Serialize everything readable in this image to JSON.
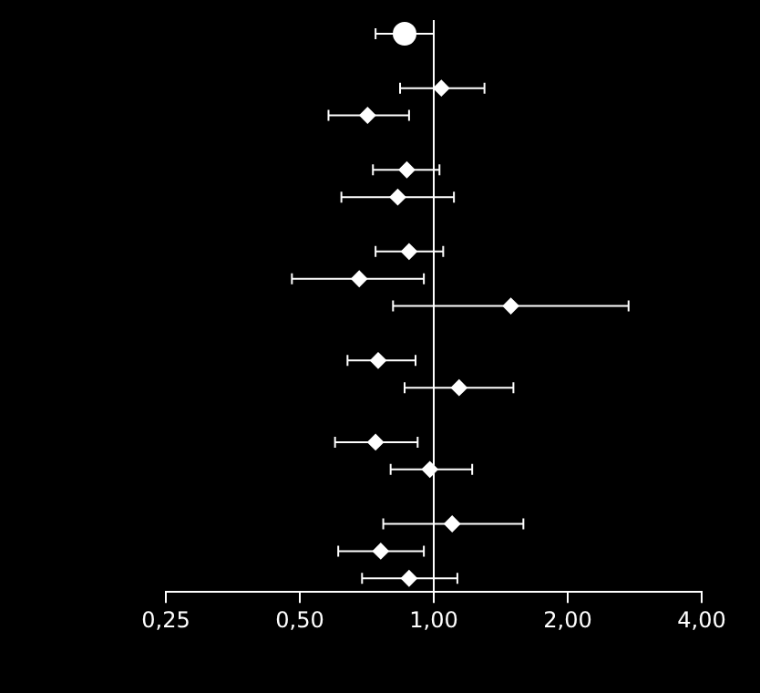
{
  "chart_data": {
    "type": "scatter",
    "orientation": "horizontal",
    "log": "x",
    "xlim": [
      0.25,
      4
    ],
    "xticks": [
      {
        "value": 0.25,
        "label": "0,25"
      },
      {
        "value": 0.5,
        "label": "0,50"
      },
      {
        "value": 1,
        "label": "1,00"
      },
      {
        "value": 2,
        "label": "2,00"
      },
      {
        "value": 4,
        "label": "4,00"
      }
    ],
    "categories": [
      null,
      null,
      null,
      null,
      null,
      null,
      null,
      null,
      null,
      null,
      null,
      null,
      null,
      null,
      null,
      null,
      null,
      null,
      null,
      null,
      null
    ],
    "grid": false,
    "legend": false,
    "ref_lines": [
      {
        "axis": "x",
        "value": 1,
        "color": "#ffffff"
      }
    ],
    "series": [
      {
        "color": "#ffffff",
        "marker": "circle",
        "values": [
          0.86,
          null,
          null,
          null,
          null,
          null,
          null,
          null,
          null,
          null,
          null,
          null,
          null,
          null,
          null,
          null,
          null,
          null,
          null,
          null,
          null
        ],
        "errors": [
          [
            0.74,
            1.0
          ],
          null,
          null,
          null,
          null,
          null,
          null,
          null,
          null,
          null,
          null,
          null,
          null,
          null,
          null,
          null,
          null,
          null,
          null,
          null,
          null
        ]
      },
      {
        "color": "#ffffff",
        "marker": "diamond",
        "values": [
          null,
          null,
          1.04,
          0.71,
          null,
          0.87,
          0.83,
          null,
          0.88,
          0.68,
          1.49,
          null,
          0.75,
          1.14,
          null,
          0.74,
          0.98,
          null,
          1.1,
          0.76,
          0.88
        ],
        "errors": [
          null,
          null,
          [
            0.84,
            1.3
          ],
          [
            0.58,
            0.88
          ],
          null,
          [
            0.73,
            1.03
          ],
          [
            0.62,
            1.11
          ],
          null,
          [
            0.74,
            1.05
          ],
          [
            0.48,
            0.95
          ],
          [
            0.81,
            2.74
          ],
          null,
          [
            0.64,
            0.91
          ],
          [
            0.86,
            1.51
          ],
          null,
          [
            0.6,
            0.92
          ],
          [
            0.8,
            1.22
          ],
          null,
          [
            0.77,
            1.59
          ],
          [
            0.61,
            0.95
          ],
          [
            0.69,
            1.13
          ]
        ]
      }
    ]
  }
}
